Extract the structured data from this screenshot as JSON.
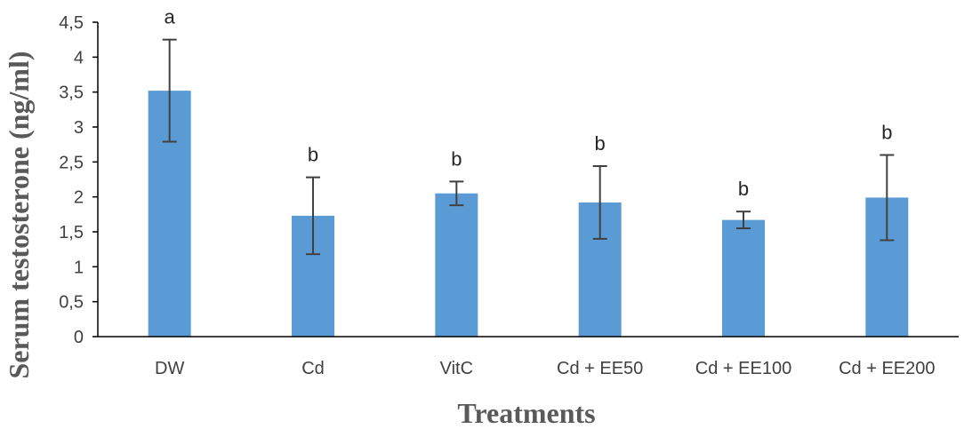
{
  "chart_data": {
    "type": "bar",
    "title": "",
    "xlabel": "Treatments",
    "ylabel": "Serum testosterone (ng/ml)",
    "ylim": [
      0,
      4.5
    ],
    "yticks": [
      0,
      0.5,
      1,
      1.5,
      2,
      2.5,
      3,
      3.5,
      4,
      4.5
    ],
    "ytick_labels": [
      "0",
      "0,5",
      "1",
      "1,5",
      "2",
      "2,5",
      "3",
      "3,5",
      "4",
      "4,5"
    ],
    "categories": [
      "DW",
      "Cd",
      "VitC",
      "Cd + EE50",
      "Cd + EE100",
      "Cd + EE200"
    ],
    "values": [
      3.52,
      1.73,
      2.05,
      1.92,
      1.67,
      1.99
    ],
    "errors": [
      0.73,
      0.55,
      0.17,
      0.52,
      0.12,
      0.61
    ],
    "significance": [
      "a",
      "b",
      "b",
      "b",
      "b",
      "b"
    ],
    "bar_color": "#5b9bd5",
    "error_color": "#404040",
    "axis_color": "#000000",
    "grid": false
  }
}
